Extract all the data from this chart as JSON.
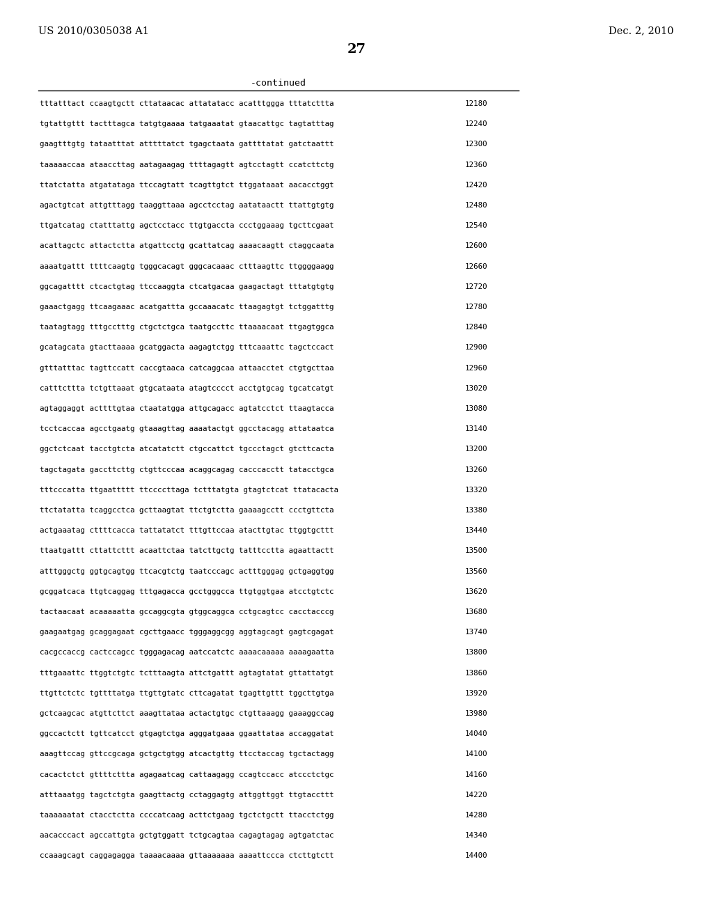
{
  "header_left": "US 2010/0305038 A1",
  "header_right": "Dec. 2, 2010",
  "page_number": "27",
  "continued_label": "-continued",
  "background_color": "#ffffff",
  "text_color": "#000000",
  "sequence_lines": [
    [
      "tttatttact ccaagtgctt cttataacac attatatacc acatttggga tttatcttta",
      "12180"
    ],
    [
      "tgtattgttt tactttagca tatgtgaaaa tatgaaatat gtaacattgc tagtatttag",
      "12240"
    ],
    [
      "gaagtttgtg tataatttat atttttatct tgagctaata gattttatat gatctaattt",
      "12300"
    ],
    [
      "taaaaaccaa ataaccttag aatagaagag ttttagagtt agtcctagtt ccatcttctg",
      "12360"
    ],
    [
      "ttatctatta atgatataga ttccagtatt tcagttgtct ttggataaat aacacctggt",
      "12420"
    ],
    [
      "agactgtcat attgtttagg taaggttaaa agcctcctag aatataactt ttattgtgtg",
      "12480"
    ],
    [
      "ttgatcatag ctatttattg agctcctacc ttgtgaccta ccctggaaag tgcttcgaat",
      "12540"
    ],
    [
      "acattagctc attactctta atgattcctg gcattatcag aaaacaagtt ctaggcaata",
      "12600"
    ],
    [
      "aaaatgattt ttttcaagtg tgggcacagt gggcacaaac ctttaagttc ttggggaagg",
      "12660"
    ],
    [
      "ggcagatttt ctcactgtag ttccaaggta ctcatgacaa gaagactagt tttatgtgtg",
      "12720"
    ],
    [
      "gaaactgagg ttcaagaaac acatgattta gccaaacatc ttaagagtgt tctggatttg",
      "12780"
    ],
    [
      "taatagtagg tttgcctttg ctgctctgca taatgccttc ttaaaacaat ttgagtggca",
      "12840"
    ],
    [
      "gcatagcata gtacttaaaa gcatggacta aagagtctgg tttcaaattc tagctccact",
      "12900"
    ],
    [
      "gtttatttac tagttccatt caccgtaaca catcaggcaa attaacctet ctgtgcttaa",
      "12960"
    ],
    [
      "catttcttta tctgttaaat gtgcataata atagtcccct acctgtgcag tgcatcatgt",
      "13020"
    ],
    [
      "agtaggaggt acttttgtaa ctaatatgga attgcagacc agtatcctct ttaagtacca",
      "13080"
    ],
    [
      "tcctcaccaa agcctgaatg gtaaagttag aaaatactgt ggcctacagg attataatca",
      "13140"
    ],
    [
      "ggctctcaat tacctgtcta atcatatctt ctgccattct tgccctagct gtcttcacta",
      "13200"
    ],
    [
      "tagctagata gaccttcttg ctgttcccaa acaggcagag cacccacctt tatacctgca",
      "13260"
    ],
    [
      "tttcccatta ttgaattttt ttccccttaga tctttatgta gtagtctcat ttatacacta",
      "13320"
    ],
    [
      "ttctatatta tcaggcctca gcttaagtat ttctgtctta gaaaagcctt ccctgttcta",
      "13380"
    ],
    [
      "actgaaatag cttttcacca tattatatct tttgttccaa atacttgtac ttggtgcttt",
      "13440"
    ],
    [
      "ttaatgattt cttattcttt acaattctaa tatcttgctg tatttcctta agaattactt",
      "13500"
    ],
    [
      "atttgggctg ggtgcagtgg ttcacgtctg taatcccagc actttgggag gctgaggtgg",
      "13560"
    ],
    [
      "gcggatcaca ttgtcaggag tttgagacca gcctgggcca ttgtggtgaa atcctgtctc",
      "13620"
    ],
    [
      "tactaacaat acaaaaatta gccaggcgta gtggcaggca cctgcagtcc cacctacccg",
      "13680"
    ],
    [
      "gaagaatgag gcaggagaat cgcttgaacc tgggaggcgg aggtagcagt gagtcgagat",
      "13740"
    ],
    [
      "cacgccaccg cactccagcc tgggagacag aatccatctc aaaacaaaaa aaaagaatta",
      "13800"
    ],
    [
      "tttgaaattc ttggtctgtc tctttaagta attctgattt agtagtatat gttattatgt",
      "13860"
    ],
    [
      "ttgttctctc tgttttatga ttgttgtatc cttcagatat tgagttgttt tggcttgtga",
      "13920"
    ],
    [
      "gctcaagcac atgttcttct aaagttataa actactgtgc ctgttaaagg gaaaggccag",
      "13980"
    ],
    [
      "ggccactctt tgttcatcct gtgagtctga agggatgaaa ggaattataa accaggatat",
      "14040"
    ],
    [
      "aaagttccag gttccgcaga gctgctgtgg atcactgttg ttcctaccag tgctactagg",
      "14100"
    ],
    [
      "cacactctct gttttcttta agagaatcag cattaagagg ccagtccacc atccctctgc",
      "14160"
    ],
    [
      "atttaaatgg tagctctgta gaagttactg cctaggagtg attggttggt ttgtaccttt",
      "14220"
    ],
    [
      "taaaaaatat ctacctctta ccccatcaag acttctgaag tgctctgctt ttacctctgg",
      "14280"
    ],
    [
      "aacacccact agccattgta gctgtggatt tctgcagtaa cagagtagag agtgatctac",
      "14340"
    ],
    [
      "ccaaagcagt caggagagga taaaacaaaa gttaaaaaaa aaaattccca ctcttgtctt",
      "14400"
    ]
  ]
}
